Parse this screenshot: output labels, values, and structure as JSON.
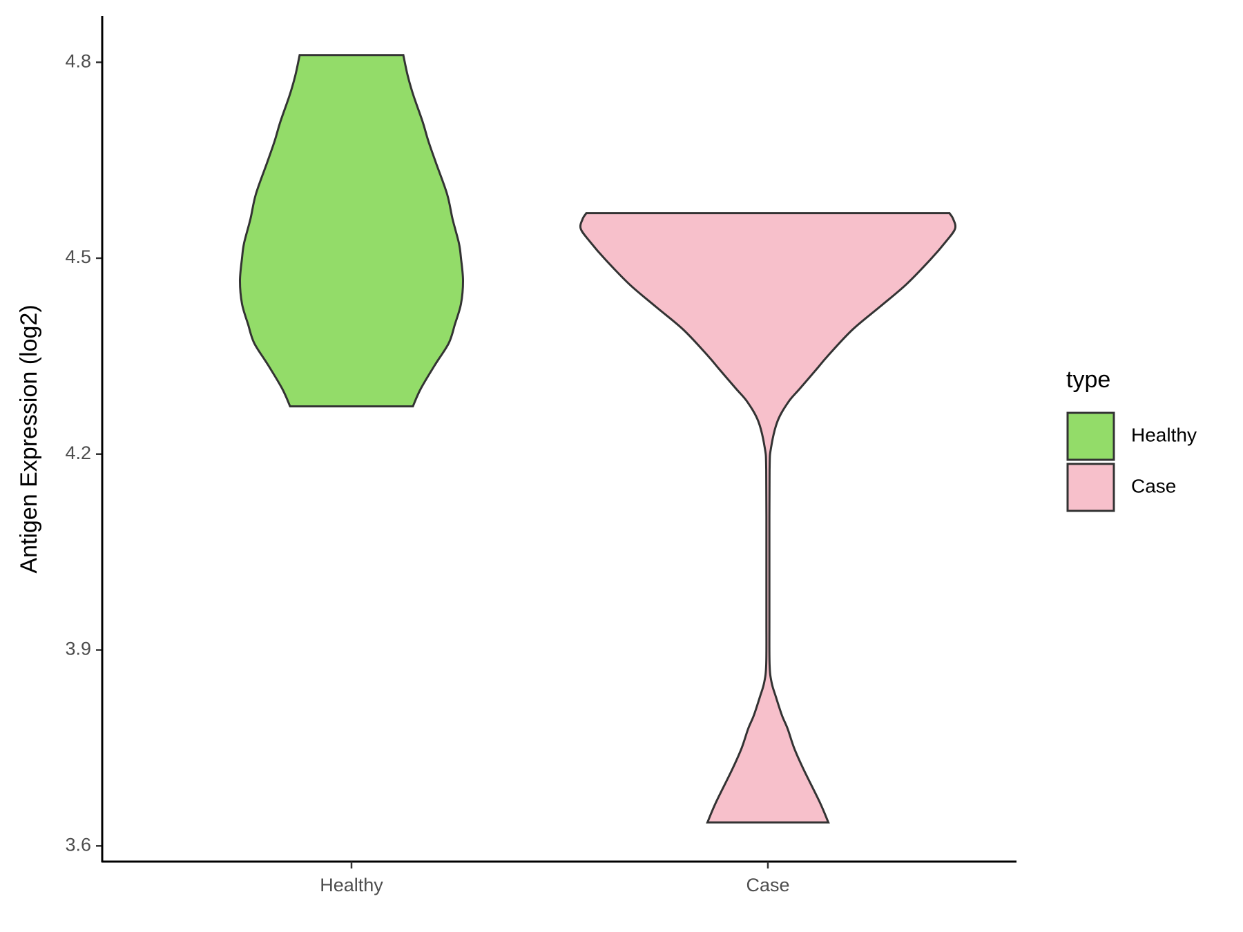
{
  "chart_data": {
    "type": "violin",
    "y_label": "Antigen Expression (log2)",
    "categories": [
      "Healthy",
      "Case"
    ],
    "legend_title": "type",
    "ylim": [
      3.576,
      4.871
    ],
    "yticks": [
      {
        "value": 3.6,
        "label": "3.6"
      },
      {
        "value": 3.9,
        "label": "3.9"
      },
      {
        "value": 4.2,
        "label": "4.2"
      },
      {
        "value": 4.5,
        "label": "4.5"
      },
      {
        "value": 4.8,
        "label": "4.8"
      }
    ],
    "series": [
      {
        "name": "Healthy",
        "color": "#93DC69",
        "y": [
          4.273,
          4.3,
          4.337,
          4.37,
          4.399,
          4.43,
          4.465,
          4.5,
          4.523,
          4.56,
          4.598,
          4.647,
          4.68,
          4.709,
          4.75,
          4.78,
          4.811
        ],
        "density": [
          0.328,
          0.37,
          0.447,
          0.52,
          0.553,
          0.585,
          0.596,
          0.585,
          0.574,
          0.54,
          0.511,
          0.45,
          0.41,
          0.38,
          0.33,
          0.3,
          0.277
        ]
      },
      {
        "name": "Case",
        "color": "#F7C0CB",
        "y": [
          3.636,
          3.667,
          3.717,
          3.75,
          3.779,
          3.8,
          3.828,
          3.85,
          3.878,
          3.95,
          4.05,
          4.176,
          4.21,
          4.25,
          4.28,
          4.3,
          4.33,
          4.35,
          4.39,
          4.425,
          4.46,
          4.499,
          4.525,
          4.545,
          4.56,
          4.569
        ],
        "density": [
          0.323,
          0.277,
          0.191,
          0.14,
          0.106,
          0.075,
          0.043,
          0.02,
          0.009,
          0.008,
          0.008,
          0.009,
          0.017,
          0.051,
          0.11,
          0.17,
          0.26,
          0.319,
          0.45,
          0.596,
          0.74,
          0.872,
          0.95,
          1.0,
          0.99,
          0.97
        ]
      }
    ]
  }
}
